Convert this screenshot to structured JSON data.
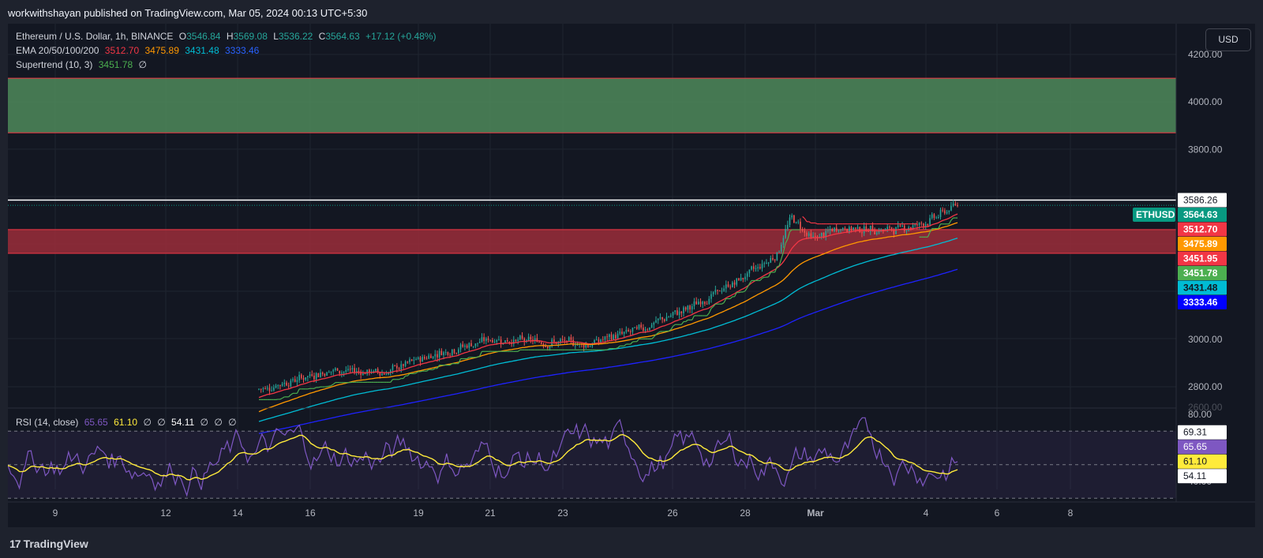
{
  "header": {
    "publish_info": "workwithshayan published on TradingView.com, Mar 05, 2024 00:13 UTC+5:30"
  },
  "legend": {
    "symbol": "Ethereum / U.S. Dollar, 1h, BINANCE",
    "o_label": "O",
    "o_value": "3546.84",
    "h_label": "H",
    "h_value": "3569.08",
    "l_label": "L",
    "l_value": "3536.22",
    "c_label": "C",
    "c_value": "3564.63",
    "change": "+17.12 (+0.48%)",
    "ema_label": "EMA 20/50/100/200",
    "ema20": "3512.70",
    "ema50": "3475.89",
    "ema100": "3431.48",
    "ema200": "3333.46",
    "supertrend_label": "Supertrend (10, 3)",
    "supertrend_value": "3451.78",
    "supertrend_extra": "∅"
  },
  "rsi_legend": {
    "label": "RSI (14, close)",
    "v1": "65.65",
    "v2": "61.10",
    "v3": "∅",
    "v4": "∅",
    "v5": "54.11",
    "v6": "∅",
    "v7": "∅",
    "v8": "∅"
  },
  "currency": "USD",
  "price_axis": {
    "ticks": [
      {
        "label": "4200.00",
        "value": 4200
      },
      {
        "label": "4000.00",
        "value": 4000
      },
      {
        "label": "3800.00",
        "value": 3800
      },
      {
        "label": "3000.00",
        "value": 3000
      },
      {
        "label": "2800.00",
        "value": 2800
      }
    ],
    "partially_visible_tick": "2600.00",
    "markers": [
      {
        "label": "3586.26",
        "value": 3586.26,
        "bg": "#ffffff",
        "fg": "#131722",
        "type": "line"
      },
      {
        "label": "3564.63",
        "value": 3564.63,
        "bg": "#089981",
        "fg": "#ffffff",
        "type": "last",
        "tag": "ETHUSD"
      },
      {
        "label": "3512.70",
        "value": 3512.7,
        "bg": "#f23645",
        "fg": "#ffffff",
        "type": "ema20"
      },
      {
        "label": "3475.89",
        "value": 3475.89,
        "bg": "#ff9800",
        "fg": "#ffffff",
        "type": "ema50"
      },
      {
        "label": "3451.95",
        "value": 3451.95,
        "bg": "#f23645",
        "fg": "#ffffff",
        "type": "zone"
      },
      {
        "label": "3451.78",
        "value": 3451.78,
        "bg": "#4caf50",
        "fg": "#ffffff",
        "type": "supertrend"
      },
      {
        "label": "3431.48",
        "value": 3431.48,
        "bg": "#00bcd4",
        "fg": "#131722",
        "type": "ema100"
      },
      {
        "label": "3333.46",
        "value": 3333.46,
        "bg": "#0000ff",
        "fg": "#ffffff",
        "type": "ema200"
      }
    ]
  },
  "rsi_axis": {
    "ticks_partial": [
      "80.00",
      "40.00"
    ],
    "markers": [
      {
        "label": "69.31",
        "value": 69.31,
        "bg": "#ffffff",
        "fg": "#131722"
      },
      {
        "label": "65.65",
        "value": 65.65,
        "bg": "#7e57c2",
        "fg": "#ffffff"
      },
      {
        "label": "61.10",
        "value": 61.1,
        "bg": "#ffeb3b",
        "fg": "#131722"
      },
      {
        "label": "54.11",
        "value": 54.11,
        "bg": "#ffffff",
        "fg": "#131722"
      }
    ]
  },
  "time_axis": [
    "9",
    "12",
    "14",
    "16",
    "19",
    "21",
    "23",
    "26",
    "28",
    "Mar",
    "4",
    "6",
    "8"
  ],
  "colors": {
    "up": "#26a69a",
    "down": "#ef5350",
    "ema20": "#f23645",
    "ema50": "#ff9800",
    "ema100": "#00bcd4",
    "ema200": "#1e22ff",
    "supertrend_up": "#4caf50",
    "supertrend_down": "#f23645",
    "supply_zone": "#4f8a5b",
    "demand_zone": "#9b2d3a",
    "rsi": "#7e57c2",
    "rsi_ma": "#ffeb3b"
  },
  "zones": [
    {
      "name": "upper-zone",
      "top": 4100,
      "bottom": 3870
    },
    {
      "name": "lower-zone",
      "top": 3462,
      "bottom": 3362
    }
  ],
  "resistance_line": 3586.26,
  "footer": {
    "brand": "TradingView",
    "logo_glyph": "17"
  }
}
